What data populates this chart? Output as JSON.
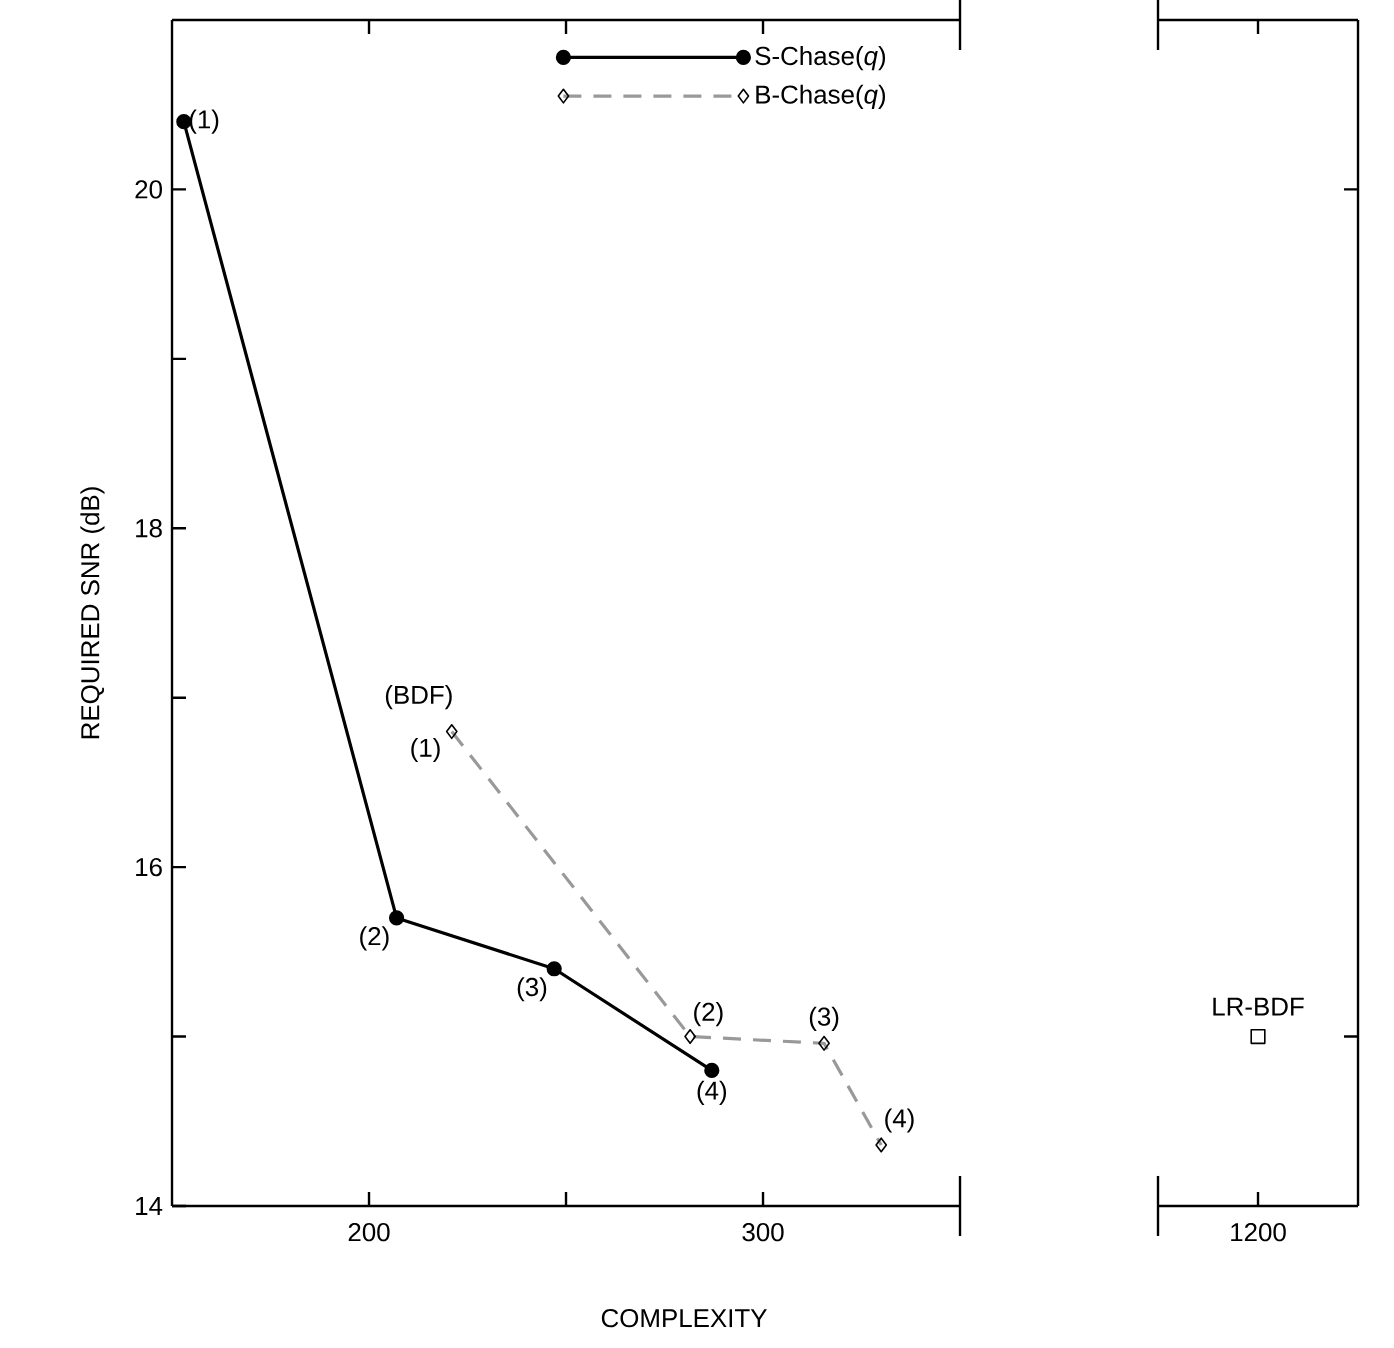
{
  "chart_data": [
    {
      "type": "line",
      "xlabel": "COMPLEXITY",
      "ylabel": "REQUIRED SNR (dB)",
      "xlim": [
        150,
        350
      ],
      "ylim": [
        14,
        21
      ],
      "xticks": [
        200,
        {
          "value": 250,
          "label": null
        },
        300
      ],
      "yticks": [
        14,
        {
          "value": 15,
          "label": null
        },
        16,
        {
          "value": 17,
          "label": null
        },
        18,
        {
          "value": 19,
          "label": null
        },
        20
      ],
      "legend": "top",
      "series": [
        {
          "name": "S-Chase(*q*)",
          "color": "#000000",
          "marker": "circle",
          "line_style": "solid",
          "x": [
            153,
            207,
            247,
            287
          ],
          "values": [
            20.4,
            15.7,
            15.4,
            14.8
          ]
        },
        {
          "name": "B-Chase(*q*)",
          "color": "#999999",
          "marker": "diamond",
          "line_style": "dashed",
          "x": [
            221,
            281.5,
            315.5,
            330
          ],
          "values": [
            16.8,
            15.0,
            14.96,
            14.36
          ]
        }
      ],
      "annotations": [
        {
          "text": "(1)",
          "x": 153,
          "y": 20.4
        },
        {
          "text": "(2)",
          "x": 207,
          "y": 15.7
        },
        {
          "text": "(3)",
          "x": 247,
          "y": 15.4
        },
        {
          "text": "(4)",
          "x": 287,
          "y": 14.8
        },
        {
          "text": "(1)",
          "x": 221,
          "y": 16.8
        },
        {
          "text": "(BDF)",
          "x": 221,
          "y": 16.8
        },
        {
          "text": "(2)",
          "x": 281.5,
          "y": 15.0
        },
        {
          "text": "(3)",
          "x": 315.5,
          "y": 14.96
        },
        {
          "text": "(4)",
          "x": 330,
          "y": 14.36
        }
      ]
    },
    {
      "type": "scatter",
      "categories": [
        "1200"
      ],
      "ylim": [
        14,
        21
      ],
      "yticks": [
        {
          "value": 15,
          "label": null
        },
        {
          "value": 20,
          "label": null
        }
      ],
      "tick_labels": "x",
      "series": [
        {
          "name": "LR-BDF",
          "color": "#000000",
          "marker": "square",
          "values": [
            15.0
          ]
        }
      ]
    }
  ]
}
